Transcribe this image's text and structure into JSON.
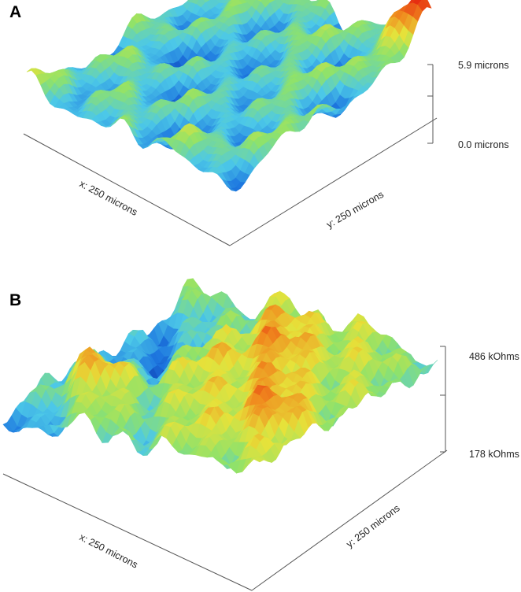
{
  "chart_data": [
    {
      "panel_label": "A",
      "type": "surface",
      "xlabel": "x: 250 microns",
      "ylabel": "y: 250 microns",
      "zlabel_max": "5.9 microns",
      "zlabel_min": "0.0 microns",
      "zlim": [
        0.0,
        5.9
      ],
      "zunit": "microns",
      "colormap": [
        "#0a2fa8",
        "#1e78e0",
        "#4cc8e8",
        "#8fe26a",
        "#e6e23a",
        "#f08a1e",
        "#e52410"
      ]
    },
    {
      "panel_label": "B",
      "type": "surface",
      "xlabel": "x: 250 microns",
      "ylabel": "y: 250 microns",
      "zlabel_max": "486 kOhms",
      "zlabel_min": "178 kOhms",
      "zlim": [
        178,
        486
      ],
      "zunit": "kOhms",
      "colormap": [
        "#0a2fa8",
        "#1e78e0",
        "#4cc8e8",
        "#8fe26a",
        "#e6e23a",
        "#f08a1e",
        "#e52410"
      ]
    }
  ]
}
